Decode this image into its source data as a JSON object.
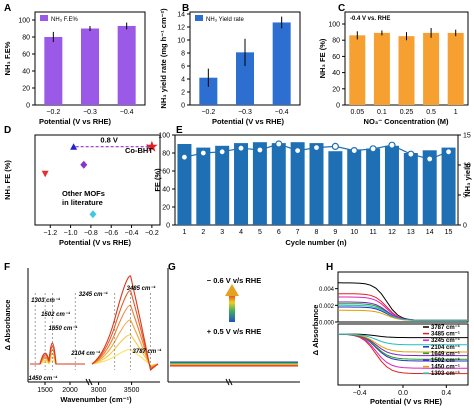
{
  "panel_letters": [
    "A",
    "B",
    "C",
    "D",
    "E",
    "F",
    "G",
    "H"
  ],
  "chart_data": [
    {
      "panel": "A",
      "type": "bar",
      "legend": "NH₃ F.E%",
      "categories": [
        "−0.2",
        "−0.3",
        "−0.4"
      ],
      "values": [
        80,
        90,
        93
      ],
      "errors": [
        6,
        3,
        4
      ],
      "ylim": [
        0,
        100
      ],
      "yticks": [
        "0",
        "20",
        "40",
        "60",
        "80",
        "100"
      ],
      "ylabel": "NH₃ F.E%",
      "xlabel": "Potential (V vs RHE)",
      "color": "#9b59e8"
    },
    {
      "panel": "B",
      "type": "bar",
      "legend": "NH₃ Yield rate",
      "categories": [
        "−0.2",
        "−0.3",
        "−0.4"
      ],
      "values": [
        4.2,
        8.1,
        12.7
      ],
      "errors": [
        1.4,
        2.1,
        0.9
      ],
      "ylim": [
        0,
        14
      ],
      "yticks": [
        "0",
        "2",
        "4",
        "6",
        "8",
        "10",
        "12",
        "14"
      ],
      "ylabel": "NH₃ yield rate (mg h⁻¹ cm⁻²)",
      "xlabel": "Potential (V vs RHE)",
      "color": "#2d6fd0"
    },
    {
      "panel": "C",
      "type": "bar",
      "legend": "-0.4 V vs. RHE",
      "categories": [
        "0.05",
        "0.1",
        "0.25",
        "0.5",
        "1"
      ],
      "values": [
        86,
        89,
        85,
        89,
        89
      ],
      "errors": [
        5,
        3,
        5,
        6,
        4
      ],
      "ylim": [
        0,
        100
      ],
      "yticks": [
        "0",
        "20",
        "40",
        "60",
        "80",
        "100"
      ],
      "ylabel": "NH₃ FE (%)",
      "xlabel": "NO₃⁻ Concentration (M)",
      "color": "#f5a030"
    },
    {
      "panel": "D",
      "type": "scatter",
      "ylabel": "NH₃ FE (%)",
      "xlabel": "Potential (V vs RHE)",
      "xticks": [
        "−1.2",
        "−1.0",
        "−0.8",
        "−0.6",
        "−0.4",
        "−0.2"
      ],
      "annotation": "0.8 V",
      "label_star": "Co-BHT",
      "label_lit": [
        "Other MOFs",
        "in literature"
      ],
      "points": [
        {
          "x": -1.25,
          "y": 57,
          "color": "#e53030",
          "marker": "triangle-down"
        },
        {
          "x": -0.97,
          "y": 87,
          "color": "#2222cc",
          "marker": "triangle-up"
        },
        {
          "x": -0.87,
          "y": 67,
          "color": "#8833cc",
          "marker": "diamond"
        },
        {
          "x": -0.78,
          "y": 12,
          "color": "#40c8e0",
          "marker": "diamond"
        },
        {
          "x": -0.2,
          "y": 87,
          "color": "#e02020",
          "marker": "star"
        }
      ]
    },
    {
      "panel": "E",
      "type": "bar+line",
      "categories": [
        "1",
        "2",
        "3",
        "4",
        "5",
        "6",
        "7",
        "8",
        "9",
        "10",
        "11",
        "12",
        "13",
        "14",
        "15"
      ],
      "fe": [
        90,
        86,
        88,
        91,
        92,
        91,
        92,
        91,
        82,
        84,
        85,
        88,
        80,
        83,
        86
      ],
      "yield": [
        11.3,
        12.0,
        12.2,
        12.8,
        12.5,
        13.5,
        12.4,
        12.9,
        13.1,
        12.4,
        12.7,
        13.3,
        11.8,
        11.0,
        12.2
      ],
      "ylim_left": [
        0,
        100
      ],
      "ylim_right": [
        0,
        15
      ],
      "yticks_left": [
        "0",
        "20",
        "40",
        "60",
        "80",
        "100"
      ],
      "yticks_right": [
        "0",
        "5",
        "10",
        "15"
      ],
      "ylabel_left": "FE (%)",
      "ylabel_right": "NH₃ yield",
      "xlabel": "Cycle number (n)",
      "color": "#1f6fb4"
    },
    {
      "panel": "F",
      "type": "line",
      "xlabel": "Wavenumber (cm⁻¹)",
      "ylabel": "Δ Absorbance",
      "xticks": [
        "1500",
        "2000",
        "3000",
        "3500"
      ],
      "peaks": [
        "1303 cm⁻¹",
        "1502 cm⁻¹",
        "1650 cm⁻¹",
        "2104 cm⁻¹",
        "1450 cm⁻¹",
        "3245 cm⁻¹",
        "3485 cm⁻¹",
        "3787 cm⁻¹"
      ]
    },
    {
      "panel": "G",
      "type": "line",
      "label_top": "− 0.6 V v/s RHE",
      "label_bottom": "+ 0.5 V v/s RHE"
    },
    {
      "panel": "H",
      "type": "line",
      "xlabel": "Potential (V vs RHE)",
      "ylabel": "Δ Absorbance",
      "yticks": [
        "0.000",
        "0.002",
        "0.004"
      ],
      "xticks": [
        "−0.4",
        "0.0",
        "0.4"
      ],
      "legend": [
        {
          "label": "3787 cm⁻¹",
          "color": "#000000"
        },
        {
          "label": "3485 cm⁻¹",
          "color": "#e02020"
        },
        {
          "label": "3245 cm⁻¹",
          "color": "#e020c0"
        },
        {
          "label": "2104 cm⁻¹",
          "color": "#2030c0"
        },
        {
          "label": "1649 cm⁻¹",
          "color": "#20a020"
        },
        {
          "label": "1502 cm⁻¹",
          "color": "#8020c0"
        },
        {
          "label": "1450 cm⁻¹",
          "color": "#e0a000"
        },
        {
          "label": "1303 cm⁻¹",
          "color": "#20c0c0"
        }
      ]
    }
  ]
}
